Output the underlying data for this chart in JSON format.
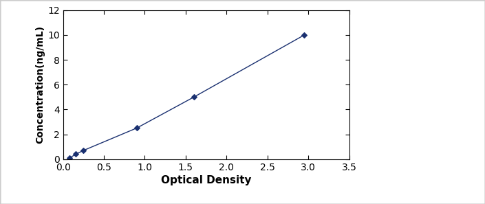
{
  "x_data": [
    0.078,
    0.156,
    0.25,
    0.9,
    1.6,
    2.95
  ],
  "y_data": [
    0.08,
    0.4,
    0.7,
    2.5,
    5.0,
    10.0
  ],
  "line_color": "#1a3070",
  "marker_style": "D",
  "marker_size": 4,
  "marker_facecolor": "#1a3070",
  "marker_edgecolor": "#1a3070",
  "line_style": "-",
  "line_width": 1.0,
  "xlabel": "Optical Density",
  "ylabel": "Concentration(ng/mL)",
  "xlim": [
    0,
    3.5
  ],
  "ylim": [
    0,
    12
  ],
  "xticks": [
    0,
    0.5,
    1.0,
    1.5,
    2.0,
    2.5,
    3.0,
    3.5
  ],
  "yticks": [
    0,
    2,
    4,
    6,
    8,
    10,
    12
  ],
  "xlabel_fontsize": 11,
  "ylabel_fontsize": 10,
  "tick_fontsize": 10,
  "background_color": "#ffffff",
  "figure_background": "#ffffff",
  "border_color": "#cccccc"
}
